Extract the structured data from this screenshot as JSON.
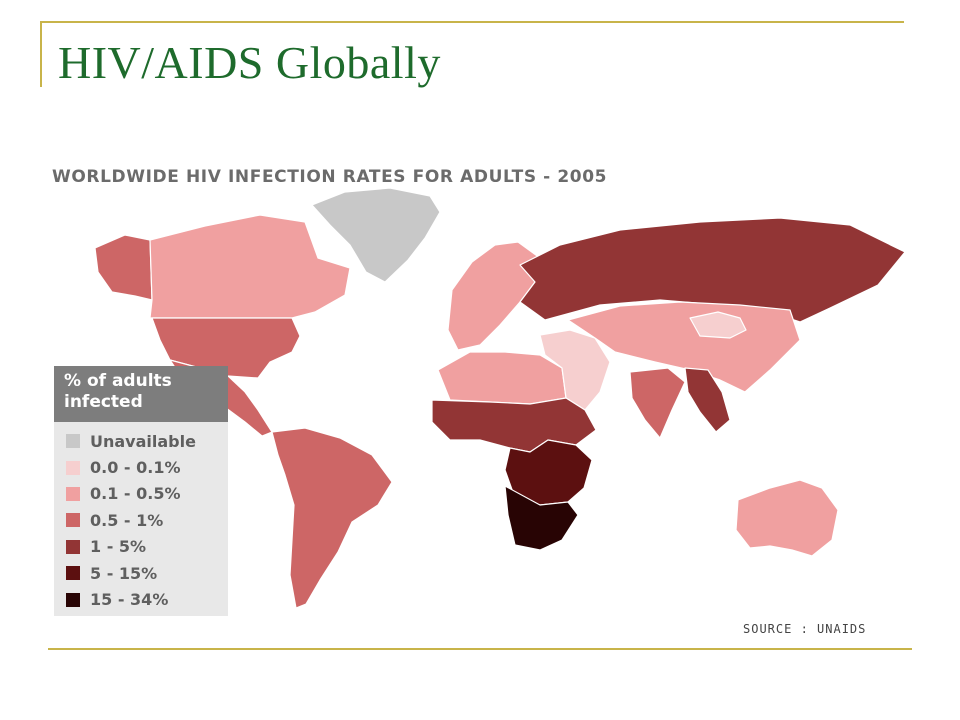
{
  "slide": {
    "title": "HIV/AIDS Globally"
  },
  "map": {
    "title": "WORLDWIDE HIV INFECTION RATES FOR ADULTS - 2005",
    "source": "SOURCE : UNAIDS",
    "legend": {
      "title": "% of adults infected",
      "items": [
        {
          "label": "Unavailable",
          "color": "#c8c8c8"
        },
        {
          "label": "0.0 - 0.1%",
          "color": "#f6cfcf"
        },
        {
          "label": "0.1 - 0.5%",
          "color": "#f0a0a0"
        },
        {
          "label": "0.5 - 1%",
          "color": "#cd6666"
        },
        {
          "label": "1 - 5%",
          "color": "#923535"
        },
        {
          "label": "5 - 15%",
          "color": "#5c1010"
        },
        {
          "label": "15 - 34%",
          "color": "#280404"
        }
      ]
    },
    "regions": [
      {
        "name": "Greenland",
        "category": "Unavailable"
      },
      {
        "name": "Canada",
        "category": "0.1 - 0.5%"
      },
      {
        "name": "Alaska",
        "category": "0.5 - 1%"
      },
      {
        "name": "United States",
        "category": "0.5 - 1%"
      },
      {
        "name": "Mexico & Central America",
        "category": "0.5 - 1%"
      },
      {
        "name": "South America",
        "category": "0.5 - 1%"
      },
      {
        "name": "Western Europe",
        "category": "0.1 - 0.5%"
      },
      {
        "name": "Russia & Eastern Europe",
        "category": "1 - 5%"
      },
      {
        "name": "North Africa",
        "category": "0.1 - 0.5%"
      },
      {
        "name": "Middle East",
        "category": "0.0 - 0.1%"
      },
      {
        "name": "Central Asia & China",
        "category": "0.1 - 0.5%"
      },
      {
        "name": "Mongolia",
        "category": "0.0 - 0.1%"
      },
      {
        "name": "India",
        "category": "0.5 - 1%"
      },
      {
        "name": "Southeast Asia",
        "category": "1 - 5%"
      },
      {
        "name": "West & Central Africa",
        "category": "1 - 5%"
      },
      {
        "name": "East & Southern-central Africa",
        "category": "5 - 15%"
      },
      {
        "name": "Southern Africa",
        "category": "15 - 34%"
      },
      {
        "name": "Australia",
        "category": "0.1 - 0.5%"
      }
    ]
  }
}
